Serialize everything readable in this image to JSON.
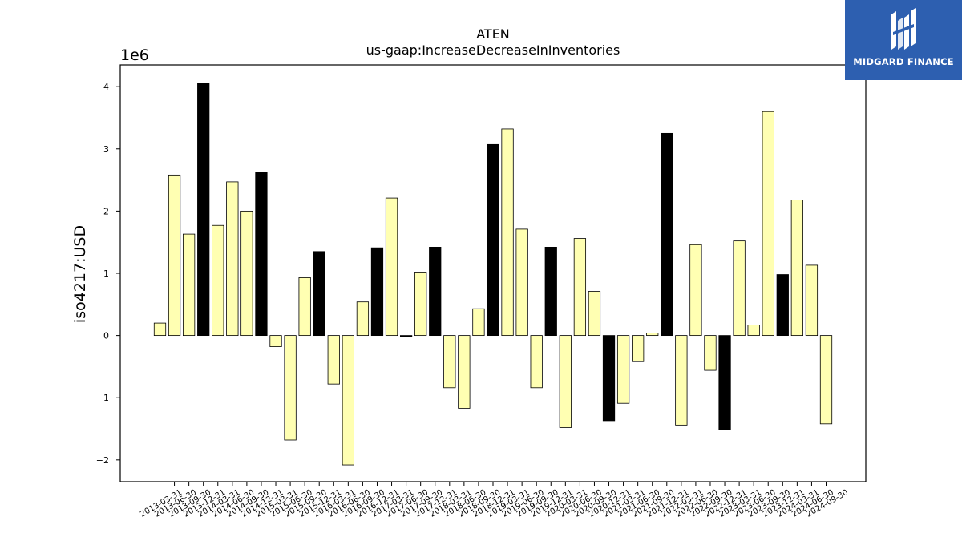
{
  "chart_data": {
    "type": "bar",
    "title": "ATEN",
    "subtitle": "us-gaap:IncreaseDecreaseInInventories",
    "ylabel": "iso4217:USD",
    "xlabel": "",
    "y_offset_label": "1e6",
    "ylim": [
      -2.35,
      4.35
    ],
    "y_ticks": [
      -2,
      -1,
      0,
      1,
      2,
      3,
      4
    ],
    "y_tick_labels": [
      "−2",
      "−1",
      "0",
      "1",
      "2",
      "3",
      "4"
    ],
    "grid": false,
    "legend": "none",
    "colors": {
      "quarter": "#ffffb2",
      "annual": "#000000",
      "edge": "#000000"
    },
    "categories": [
      "2013-03-31",
      "2013-06-30",
      "2013-09-30",
      "2013-12-31",
      "2014-03-31",
      "2014-06-30",
      "2014-09-30",
      "2014-12-31",
      "2015-03-31",
      "2015-06-30",
      "2015-09-30",
      "2015-12-31",
      "2016-03-31",
      "2016-06-30",
      "2016-09-30",
      "2016-12-31",
      "2017-03-31",
      "2017-06-30",
      "2017-09-30",
      "2017-12-31",
      "2018-03-31",
      "2018-06-30",
      "2018-09-30",
      "2018-12-31",
      "2019-03-31",
      "2019-06-30",
      "2019-09-30",
      "2019-12-31",
      "2020-03-31",
      "2020-06-30",
      "2020-09-30",
      "2020-12-31",
      "2021-03-31",
      "2021-06-30",
      "2021-09-30",
      "2021-12-31",
      "2022-03-31",
      "2022-06-30",
      "2022-09-30",
      "2022-12-31",
      "2023-03-31",
      "2023-06-30",
      "2023-09-30",
      "2023-12-31",
      "2024-03-31",
      "2024-06-30",
      "2024-09-30"
    ],
    "values": [
      0.2,
      2.58,
      1.63,
      4.05,
      1.77,
      2.47,
      2.0,
      2.63,
      -0.18,
      -1.68,
      0.93,
      1.35,
      -0.78,
      -2.08,
      0.54,
      1.41,
      2.21,
      -0.02,
      1.02,
      1.42,
      -0.84,
      -1.17,
      0.43,
      3.07,
      3.32,
      1.71,
      -0.84,
      1.42,
      -1.48,
      1.56,
      0.71,
      -1.37,
      -1.09,
      -0.42,
      0.04,
      3.25,
      -1.44,
      1.46,
      -0.56,
      -1.51,
      1.52,
      0.17,
      3.6,
      0.98,
      2.18,
      1.13,
      -1.42
    ],
    "annual": [
      false,
      false,
      false,
      true,
      false,
      false,
      false,
      true,
      false,
      false,
      false,
      true,
      false,
      false,
      false,
      true,
      false,
      true,
      false,
      true,
      false,
      false,
      false,
      true,
      false,
      false,
      false,
      true,
      false,
      false,
      false,
      true,
      false,
      false,
      false,
      true,
      false,
      false,
      false,
      true,
      false,
      false,
      false,
      true,
      false,
      false,
      false
    ]
  },
  "logo": {
    "text": "MIDGARD FINANCE"
  }
}
